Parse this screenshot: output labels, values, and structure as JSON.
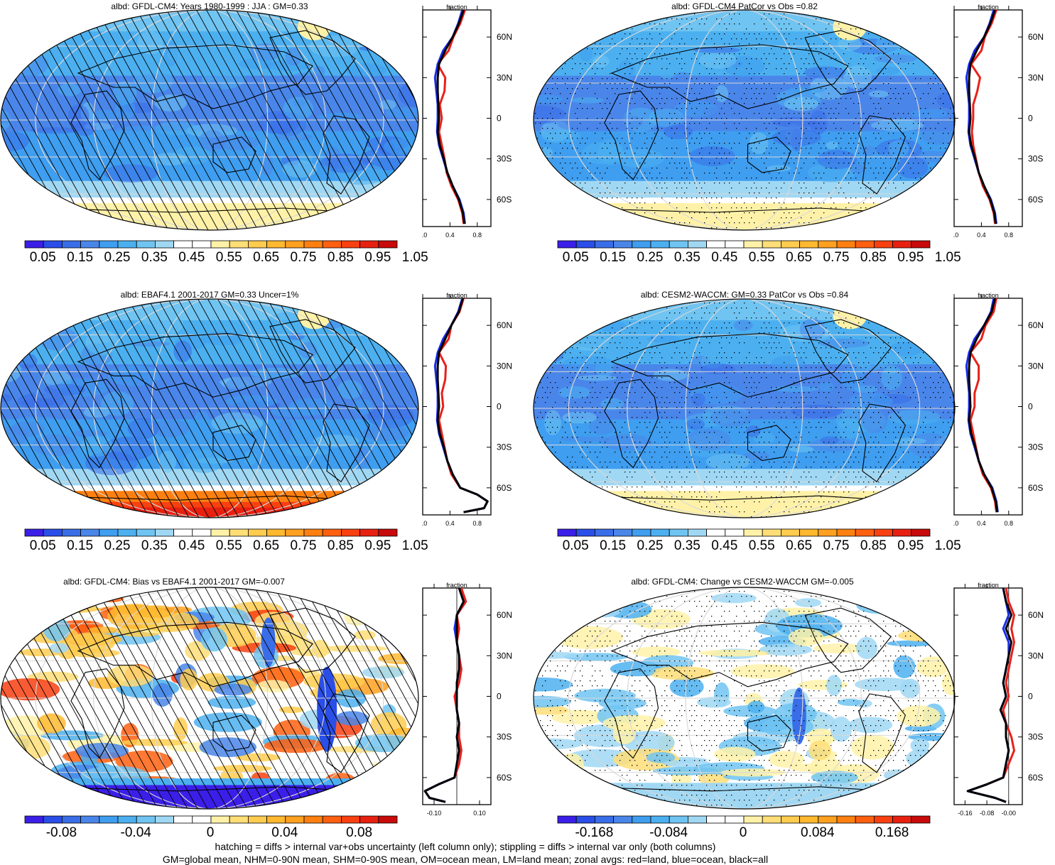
{
  "colorbars": {
    "albedo": {
      "labels": [
        "0.05",
        "0.15",
        "0.25",
        "0.35",
        "0.45",
        "0.55",
        "0.65",
        "0.75",
        "0.85",
        "0.95",
        "1.05"
      ],
      "colors": [
        "#3b1fe8",
        "#2a4ee8",
        "#3a6ee8",
        "#4a86ea",
        "#3f9ef0",
        "#4cb0f0",
        "#70c4f2",
        "#a0d8f4",
        "#ffffff",
        "#ffffff",
        "#fff2a8",
        "#ffde78",
        "#ffcc50",
        "#ffb830",
        "#ffa020",
        "#ff8010",
        "#ff6010",
        "#f84010",
        "#e82010",
        "#c80a0a"
      ]
    },
    "bias": {
      "labels": [
        "-0.08",
        "-0.04",
        "0",
        "0.04",
        "0.08"
      ],
      "colors": [
        "#3b1fe8",
        "#2a4ee8",
        "#3a6ee8",
        "#4a86ea",
        "#3f9ef0",
        "#4cb0f0",
        "#70c4f2",
        "#a0d8f4",
        "#ffffff",
        "#ffffff",
        "#fff2a8",
        "#ffde78",
        "#ffcc50",
        "#ffb830",
        "#ffa020",
        "#ff8010",
        "#ff6010",
        "#f84010",
        "#e82010",
        "#c80a0a"
      ]
    },
    "change": {
      "labels": [
        "-0.168",
        "-0.084",
        "0",
        "0.084",
        "0.168"
      ],
      "colors": [
        "#3b1fe8",
        "#2a4ee8",
        "#3a6ee8",
        "#4a86ea",
        "#3f9ef0",
        "#4cb0f0",
        "#70c4f2",
        "#a0d8f4",
        "#ffffff",
        "#ffffff",
        "#fff2a8",
        "#ffde78",
        "#ffcc50",
        "#ffb830",
        "#ffa020",
        "#ff8010",
        "#ff6010",
        "#f84010",
        "#e82010",
        "#c80a0a"
      ]
    }
  },
  "panels": [
    {
      "title": "albd: GFDL-CM4: Years 1980-1999 : JJA : GM=0.33",
      "colorbar": "albedo",
      "pattern": "hatch",
      "field": "albedo-model"
    },
    {
      "title": "albd: GFDL-CM4 PatCor vs Obs =0.82",
      "colorbar": "albedo",
      "pattern": "stipple",
      "field": "albedo-model"
    },
    {
      "title": "albd: EBAF4.1 2001-2017 GM=0.33 Uncer=1%",
      "colorbar": "albedo",
      "pattern": "hatch",
      "field": "albedo-obs"
    },
    {
      "title": "albd: CESM2-WACCM: GM=0.33 PatCor vs Obs =0.84",
      "colorbar": "albedo",
      "pattern": "stipple",
      "field": "albedo-model"
    },
    {
      "title": "albd: GFDL-CM4: Bias vs EBAF4.1 2001-2017 GM=-0.007",
      "colorbar": "bias",
      "pattern": "hatch",
      "field": "bias"
    },
    {
      "title": "albd: GFDL-CM4: Change vs CESM2-WACCM GM=-0.005",
      "colorbar": "change",
      "pattern": "stipple",
      "field": "change"
    }
  ],
  "zonal_axis": {
    "title": "fraction",
    "lat_ticks": [
      "60N",
      "30N",
      "0",
      "30S",
      "60S"
    ]
  },
  "chart_data": [
    {
      "type": "line",
      "title": "fraction",
      "panel": "GFDL-CM4 JJA 1980-1999",
      "x_ticks": [
        "0.0",
        "0.4",
        "0.8"
      ],
      "xlim": [
        0,
        1
      ],
      "ylim": [
        -80,
        80
      ],
      "ylabel": "",
      "lat": [
        80,
        70,
        60,
        50,
        40,
        30,
        20,
        10,
        0,
        -10,
        -20,
        -30,
        -40,
        -50,
        -60,
        -70,
        -78
      ],
      "series": [
        {
          "name": "land",
          "color": "#e8201a",
          "values": [
            0.62,
            0.55,
            0.45,
            0.38,
            0.22,
            0.33,
            0.32,
            0.25,
            0.28,
            0.24,
            0.28,
            0.32,
            0.35,
            0.42,
            0.52,
            0.58,
            0.6
          ]
        },
        {
          "name": "ocean",
          "color": "#1a2ee8",
          "values": [
            0.58,
            0.52,
            0.44,
            0.3,
            0.22,
            0.18,
            0.2,
            0.22,
            0.22,
            0.21,
            0.24,
            0.3,
            0.36,
            0.44,
            0.54,
            0.6,
            0.62
          ]
        },
        {
          "name": "all",
          "color": "#000000",
          "values": [
            0.6,
            0.53,
            0.44,
            0.33,
            0.24,
            0.22,
            0.22,
            0.23,
            0.24,
            0.22,
            0.25,
            0.31,
            0.36,
            0.44,
            0.53,
            0.59,
            0.61
          ]
        }
      ]
    },
    {
      "type": "line",
      "title": "fraction",
      "panel": "GFDL-CM4 PatCor",
      "x_ticks": [
        "0.0",
        "0.4",
        "0.8"
      ],
      "xlim": [
        0,
        1
      ],
      "ylim": [
        -80,
        80
      ],
      "ylabel": "",
      "lat": [
        80,
        70,
        60,
        50,
        40,
        30,
        20,
        10,
        0,
        -10,
        -20,
        -30,
        -40,
        -50,
        -60,
        -70,
        -78
      ],
      "series": [
        {
          "name": "land",
          "color": "#e8201a",
          "values": [
            0.62,
            0.55,
            0.45,
            0.4,
            0.25,
            0.38,
            0.34,
            0.28,
            0.28,
            0.26,
            0.28,
            0.32,
            0.36,
            0.42,
            0.52,
            0.58,
            0.6
          ]
        },
        {
          "name": "ocean",
          "color": "#1a2ee8",
          "values": [
            0.58,
            0.52,
            0.44,
            0.3,
            0.22,
            0.18,
            0.2,
            0.22,
            0.22,
            0.21,
            0.24,
            0.3,
            0.36,
            0.44,
            0.54,
            0.6,
            0.62
          ]
        },
        {
          "name": "all",
          "color": "#000000",
          "values": [
            0.6,
            0.53,
            0.44,
            0.33,
            0.24,
            0.22,
            0.22,
            0.23,
            0.24,
            0.22,
            0.25,
            0.31,
            0.36,
            0.44,
            0.53,
            0.59,
            0.61
          ]
        }
      ]
    },
    {
      "type": "line",
      "title": "fraction",
      "panel": "EBAF4.1 2001-2017",
      "x_ticks": [
        "0.0",
        "0.4",
        "0.8"
      ],
      "xlim": [
        0,
        1
      ],
      "ylim": [
        -80,
        80
      ],
      "ylabel": "",
      "lat": [
        80,
        70,
        60,
        50,
        40,
        30,
        20,
        10,
        0,
        -10,
        -20,
        -30,
        -40,
        -50,
        -60,
        -65,
        -70,
        -75,
        -78
      ],
      "series": [
        {
          "name": "land",
          "color": "#e8201a",
          "values": [
            0.6,
            0.54,
            0.42,
            0.38,
            0.24,
            0.34,
            0.33,
            0.28,
            0.3,
            0.24,
            0.28,
            0.32,
            0.36,
            0.42,
            0.55,
            0.8,
            0.95,
            0.9,
            0.6
          ]
        },
        {
          "name": "ocean",
          "color": "#1a2ee8",
          "values": [
            0.58,
            0.52,
            0.42,
            0.3,
            0.22,
            0.18,
            0.2,
            0.22,
            0.22,
            0.21,
            0.24,
            0.3,
            0.36,
            0.44,
            0.55,
            0.8,
            0.95,
            0.9,
            0.6
          ]
        },
        {
          "name": "all",
          "color": "#000000",
          "values": [
            0.59,
            0.53,
            0.42,
            0.33,
            0.24,
            0.22,
            0.22,
            0.23,
            0.24,
            0.22,
            0.25,
            0.31,
            0.36,
            0.44,
            0.55,
            0.8,
            0.95,
            0.9,
            0.6
          ]
        }
      ]
    },
    {
      "type": "line",
      "title": "fraction",
      "panel": "CESM2-WACCM",
      "x_ticks": [
        "0.0",
        "0.4",
        "0.8"
      ],
      "xlim": [
        0,
        1
      ],
      "ylim": [
        -80,
        80
      ],
      "ylabel": "",
      "lat": [
        80,
        70,
        60,
        50,
        40,
        30,
        20,
        10,
        0,
        -10,
        -20,
        -30,
        -40,
        -50,
        -60,
        -70,
        -78
      ],
      "series": [
        {
          "name": "land",
          "color": "#e8201a",
          "values": [
            0.62,
            0.58,
            0.46,
            0.4,
            0.24,
            0.36,
            0.36,
            0.3,
            0.3,
            0.24,
            0.28,
            0.32,
            0.36,
            0.42,
            0.54,
            0.6,
            0.62
          ]
        },
        {
          "name": "ocean",
          "color": "#1a2ee8",
          "values": [
            0.58,
            0.54,
            0.44,
            0.3,
            0.22,
            0.18,
            0.2,
            0.22,
            0.22,
            0.21,
            0.24,
            0.3,
            0.36,
            0.44,
            0.56,
            0.62,
            0.64
          ]
        },
        {
          "name": "all",
          "color": "#000000",
          "values": [
            0.6,
            0.55,
            0.44,
            0.33,
            0.24,
            0.22,
            0.22,
            0.23,
            0.24,
            0.22,
            0.25,
            0.31,
            0.36,
            0.44,
            0.55,
            0.61,
            0.63
          ]
        }
      ]
    },
    {
      "type": "line",
      "title": "fraction",
      "panel": "GFDL-CM4 Bias vs EBAF4.1",
      "x_ticks": [
        "-0.10",
        "0.10"
      ],
      "xlim": [
        -0.15,
        0.15
      ],
      "ylim": [
        -80,
        80
      ],
      "ylabel": "",
      "lat": [
        80,
        70,
        60,
        50,
        40,
        30,
        20,
        10,
        0,
        -10,
        -20,
        -30,
        -40,
        -50,
        -60,
        -65,
        -70,
        -75,
        -78
      ],
      "series": [
        {
          "name": "land",
          "color": "#e8201a",
          "values": [
            0.02,
            0.04,
            0.0,
            0.01,
            0.0,
            0.01,
            0.02,
            0.01,
            -0.01,
            0.0,
            0.01,
            0.01,
            0.02,
            0.01,
            -0.01,
            -0.08,
            -0.14,
            -0.12,
            -0.05
          ]
        },
        {
          "name": "ocean",
          "color": "#1a2ee8",
          "values": [
            0.01,
            0.03,
            0.0,
            -0.01,
            0.0,
            0.01,
            0.01,
            0.0,
            0.0,
            0.0,
            0.01,
            0.0,
            0.01,
            0.0,
            -0.01,
            -0.08,
            -0.14,
            -0.12,
            -0.05
          ]
        },
        {
          "name": "all",
          "color": "#000000",
          "values": [
            0.01,
            0.03,
            0.0,
            0.0,
            0.0,
            0.01,
            0.01,
            0.0,
            0.0,
            0.0,
            0.01,
            0.0,
            0.01,
            0.0,
            -0.01,
            -0.08,
            -0.14,
            -0.12,
            -0.05
          ]
        }
      ]
    },
    {
      "type": "line",
      "title": "fraction",
      "panel": "GFDL-CM4 Change vs CESM2-WACCM",
      "x_ticks": [
        "-0.16",
        "-0.08",
        "-0.00"
      ],
      "xlim": [
        -0.2,
        0.05
      ],
      "ylim": [
        -80,
        80
      ],
      "ylabel": "",
      "lat": [
        80,
        70,
        60,
        50,
        40,
        30,
        20,
        10,
        0,
        -10,
        -20,
        -30,
        -40,
        -50,
        -60,
        -65,
        -70,
        -75,
        -78
      ],
      "series": [
        {
          "name": "land",
          "color": "#e8201a",
          "values": [
            -0.01,
            0.0,
            0.02,
            0.01,
            0.02,
            0.01,
            0.0,
            -0.01,
            0.0,
            -0.02,
            -0.01,
            0.01,
            0.02,
            0.0,
            -0.02,
            -0.08,
            -0.15,
            -0.05,
            -0.01
          ]
        },
        {
          "name": "ocean",
          "color": "#1a2ee8",
          "values": [
            -0.02,
            -0.01,
            0.0,
            -0.02,
            0.0,
            0.0,
            -0.01,
            -0.02,
            -0.01,
            -0.03,
            -0.01,
            -0.01,
            0.0,
            -0.01,
            -0.02,
            -0.08,
            -0.15,
            -0.05,
            -0.01
          ]
        },
        {
          "name": "all",
          "color": "#000000",
          "values": [
            -0.02,
            -0.01,
            0.01,
            -0.01,
            0.01,
            0.0,
            -0.01,
            -0.02,
            -0.01,
            -0.03,
            -0.01,
            -0.01,
            0.0,
            -0.01,
            -0.02,
            -0.08,
            -0.15,
            -0.05,
            -0.01
          ]
        }
      ]
    }
  ],
  "footnotes": {
    "line1": "hatching = diffs > internal var+obs uncertainty (left column only); stippling = diffs > internal var only (both columns)",
    "line2": "GM=global mean, NHM=0-90N mean, SHM=0-90S mean, OM=ocean mean, LM=land mean; zonal avgs: red=land, blue=ocean, black=all"
  }
}
